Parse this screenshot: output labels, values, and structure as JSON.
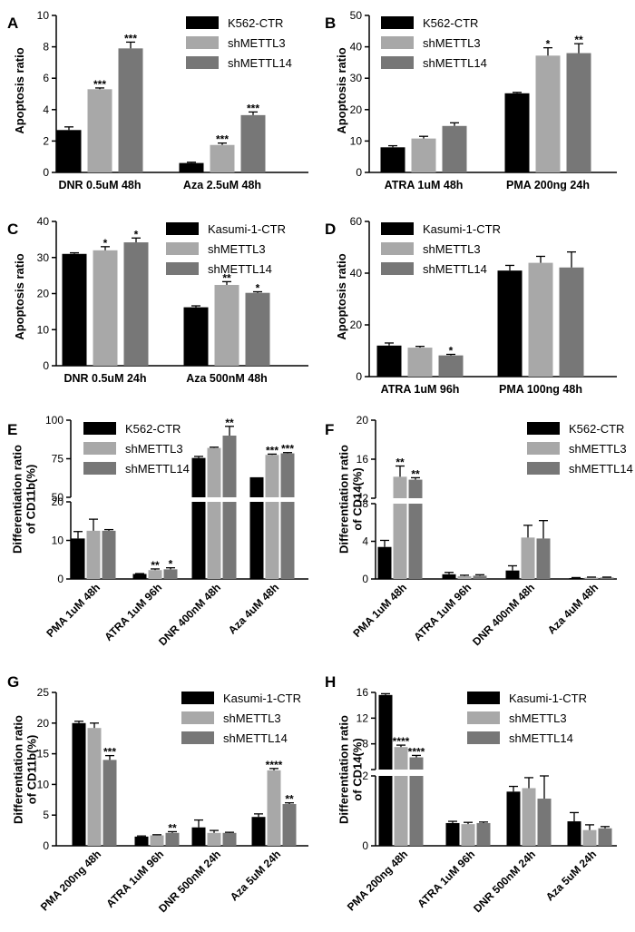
{
  "colors": {
    "ctr": "#000000",
    "sh3": "#a8a8a8",
    "sh14": "#777777",
    "axis": "#000000"
  },
  "chart_data": [
    {
      "panel": "A",
      "type": "bar",
      "ylabel": "Apoptosis ratio",
      "ylim": [
        0,
        10
      ],
      "yticks": [
        0,
        2,
        4,
        6,
        8,
        10
      ],
      "categories": [
        "DNR 0.5uM 48h",
        "Aza 2.5uM 48h"
      ],
      "series": [
        {
          "name": "K562-CTR",
          "values": [
            2.7,
            0.6
          ],
          "errors": [
            0.2,
            0.05
          ],
          "stars": [
            "",
            ""
          ]
        },
        {
          "name": "shMETTL3",
          "values": [
            5.3,
            1.75
          ],
          "errors": [
            0.08,
            0.12
          ],
          "stars": [
            "***",
            "***"
          ]
        },
        {
          "name": "shMETTL14",
          "values": [
            7.9,
            3.65
          ],
          "errors": [
            0.4,
            0.2
          ],
          "stars": [
            "***",
            "***"
          ]
        }
      ]
    },
    {
      "panel": "B",
      "type": "bar",
      "ylabel": "Apoptosis ratio",
      "ylim": [
        0,
        50
      ],
      "yticks": [
        0,
        10,
        20,
        30,
        40,
        50
      ],
      "categories": [
        "ATRA 1uM 48h",
        "PMA 200ng 24h"
      ],
      "series": [
        {
          "name": "K562-CTR",
          "values": [
            8,
            25.2
          ],
          "errors": [
            0.5,
            0.3
          ],
          "stars": [
            "",
            ""
          ]
        },
        {
          "name": "shMETTL3",
          "values": [
            10.8,
            37.2
          ],
          "errors": [
            0.7,
            2.5
          ],
          "stars": [
            "",
            "*"
          ]
        },
        {
          "name": "shMETTL14",
          "values": [
            14.8,
            38
          ],
          "errors": [
            1,
            3
          ],
          "stars": [
            "",
            "**"
          ]
        }
      ]
    },
    {
      "panel": "C",
      "type": "bar",
      "ylabel": "Apoptosis ratio",
      "ylim": [
        0,
        40
      ],
      "yticks": [
        0,
        10,
        20,
        30,
        40
      ],
      "categories": [
        "DNR 0.5uM 24h",
        "Aza 500nM 48h"
      ],
      "series": [
        {
          "name": "Kasumi-1-CTR",
          "values": [
            31,
            16.2
          ],
          "errors": [
            0.3,
            0.4
          ],
          "stars": [
            "",
            ""
          ]
        },
        {
          "name": "shMETTL3",
          "values": [
            32,
            22.4
          ],
          "errors": [
            1,
            0.9
          ],
          "stars": [
            "*",
            "**"
          ]
        },
        {
          "name": "shMETTL14",
          "values": [
            34.2,
            20.2
          ],
          "errors": [
            1.2,
            0.3
          ],
          "stars": [
            "*",
            "*"
          ]
        }
      ]
    },
    {
      "panel": "D",
      "type": "bar",
      "ylabel": "Apoptosis ratio",
      "ylim": [
        0,
        60
      ],
      "yticks": [
        0,
        20,
        40,
        60
      ],
      "categories": [
        "ATRA 1uM 96h",
        "PMA 100ng 48h"
      ],
      "series": [
        {
          "name": "Kasumi-1-CTR",
          "values": [
            12,
            41
          ],
          "errors": [
            1,
            2
          ],
          "stars": [
            "",
            ""
          ]
        },
        {
          "name": "shMETTL3",
          "values": [
            11.2,
            44
          ],
          "errors": [
            0.5,
            2.5
          ],
          "stars": [
            "",
            ""
          ]
        },
        {
          "name": "shMETTL14",
          "values": [
            8.2,
            42.2
          ],
          "errors": [
            0.4,
            6
          ],
          "stars": [
            "*",
            ""
          ]
        }
      ]
    },
    {
      "panel": "E",
      "type": "bar",
      "ylabel": [
        "Differentiation ratio",
        "of CD11b(%)"
      ],
      "broken_axis": {
        "lower": [
          0,
          20
        ],
        "upper": [
          50,
          100
        ]
      },
      "yticks": [
        0,
        10,
        20,
        50,
        75,
        100
      ],
      "categories": [
        "PMA 1uM 48h",
        "ATRA 1uM 96h",
        "DNR 400nM 48h",
        "Aza 4uM 48h"
      ],
      "series": [
        {
          "name": "K562-CTR",
          "values": [
            10.5,
            1.3,
            75.5,
            63
          ],
          "errors": [
            1.8,
            0.1,
            1,
            0
          ],
          "stars": [
            "",
            "",
            "",
            ""
          ]
        },
        {
          "name": "shMETTL3",
          "values": [
            12.5,
            2.3,
            82,
            77.5
          ],
          "errors": [
            3,
            0.3,
            0.5,
            0.5
          ],
          "stars": [
            "",
            "**",
            "",
            "***"
          ]
        },
        {
          "name": "shMETTL14",
          "values": [
            12.5,
            2.5,
            90,
            78.5
          ],
          "errors": [
            0.3,
            0.4,
            6,
            0.5
          ],
          "stars": [
            "",
            "*",
            "**",
            "***"
          ]
        }
      ]
    },
    {
      "panel": "F",
      "type": "bar",
      "ylabel": [
        "Differentiation ratio",
        "of CD14(%)"
      ],
      "broken_axis": {
        "lower": [
          0,
          8
        ],
        "upper": [
          12,
          20
        ]
      },
      "yticks": [
        0,
        4,
        8,
        12,
        16,
        20
      ],
      "categories": [
        "PMA 1uM 48h",
        "ATRA 1uM 96h",
        "DNR 400nM 48h",
        "Aza 4uM 48h"
      ],
      "series": [
        {
          "name": "K562-CTR",
          "values": [
            3.4,
            0.5,
            0.9,
            0.1
          ],
          "errors": [
            0.7,
            0.2,
            0.5,
            0.05
          ],
          "stars": [
            "",
            "",
            "",
            ""
          ]
        },
        {
          "name": "shMETTL3",
          "values": [
            14.2,
            0.3,
            4.4,
            0.15
          ],
          "errors": [
            1.1,
            0.1,
            1.3,
            0.05
          ],
          "stars": [
            "**",
            "",
            "",
            ""
          ]
        },
        {
          "name": "shMETTL14",
          "values": [
            13.9,
            0.35,
            4.3,
            0.15
          ],
          "errors": [
            0.2,
            0.1,
            1.9,
            0.05
          ],
          "stars": [
            "**",
            "",
            "",
            ""
          ]
        }
      ]
    },
    {
      "panel": "G",
      "type": "bar",
      "ylabel": [
        "Differentiation ratio",
        "of CD11b(%)"
      ],
      "ylim": [
        0,
        25
      ],
      "yticks": [
        0,
        5,
        10,
        15,
        20,
        25
      ],
      "categories": [
        "PMA 200ng 48h",
        "ATRA 1uM 96h",
        "DNR 500nM 24h",
        "Aza 5uM 24h"
      ],
      "series": [
        {
          "name": "Kasumi-1-CTR",
          "values": [
            20,
            1.5,
            3,
            4.7
          ],
          "errors": [
            0.3,
            0.1,
            1.2,
            0.5
          ],
          "stars": [
            "",
            "",
            "",
            ""
          ]
        },
        {
          "name": "shMETTL3",
          "values": [
            19.2,
            1.7,
            2.1,
            12.3
          ],
          "errors": [
            0.8,
            0.1,
            0.4,
            0.3
          ],
          "stars": [
            "",
            "",
            "",
            "****"
          ]
        },
        {
          "name": "shMETTL14",
          "values": [
            14,
            2.1,
            2.1,
            6.8
          ],
          "errors": [
            0.7,
            0.2,
            0.1,
            0.2
          ],
          "stars": [
            "***",
            "**",
            "",
            "**"
          ]
        }
      ]
    },
    {
      "panel": "H",
      "type": "bar",
      "ylabel": [
        "Differentiation ratio",
        "of CD14(%)"
      ],
      "broken_axis": {
        "lower": [
          0,
          2
        ],
        "upper": [
          4,
          16
        ]
      },
      "yticks": [
        0,
        2,
        4,
        8,
        12,
        16
      ],
      "tick_labels": [
        "0",
        "2",
        "",
        "8",
        "12",
        "16"
      ],
      "categories": [
        "PMA 200ng 48h",
        "ATRA 1uM 96h",
        "DNR 500nM 24h",
        "Aza 5uM 24h"
      ],
      "series": [
        {
          "name": "Kasumi-1-CTR",
          "values": [
            15.6,
            0.65,
            1.55,
            0.7
          ],
          "errors": [
            0.2,
            0.05,
            0.15,
            0.25
          ],
          "stars": [
            "",
            "",
            "",
            ""
          ]
        },
        {
          "name": "shMETTL3",
          "values": [
            7.5,
            0.62,
            1.65,
            0.45
          ],
          "errors": [
            0.3,
            0.05,
            0.3,
            0.15
          ],
          "stars": [
            "****",
            "",
            "",
            ""
          ]
        },
        {
          "name": "shMETTL14",
          "values": [
            5.9,
            0.65,
            1.35,
            0.5
          ],
          "errors": [
            0.3,
            0.03,
            0.65,
            0.05
          ],
          "stars": [
            "****",
            "",
            "",
            ""
          ]
        }
      ]
    }
  ]
}
